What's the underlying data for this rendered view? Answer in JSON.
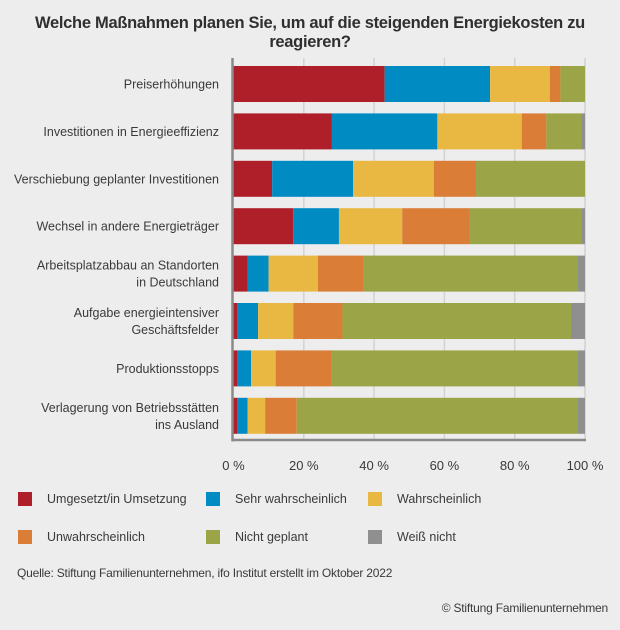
{
  "chart_data": {
    "type": "bar",
    "orientation": "horizontal",
    "stacked": true,
    "title": "Welche Maßnahmen planen Sie, um auf die steigenden Energiekosten zu reagieren?",
    "xlabel": "",
    "ylabel": "",
    "xlim": [
      0,
      100
    ],
    "x_ticks": [
      0,
      20,
      40,
      60,
      80,
      100
    ],
    "x_tick_labels": [
      "0 %",
      "20 %",
      "40 %",
      "60 %",
      "80 %",
      "100 %"
    ],
    "grid": true,
    "legend_position": "bottom",
    "categories": [
      [
        "Preiserhöhungen"
      ],
      [
        "Investitionen in Energieeffizienz"
      ],
      [
        "Verschiebung geplanter Investitionen"
      ],
      [
        "Wechsel in andere Energieträger"
      ],
      [
        "Arbeitsplatzabbau an Standorten",
        "in Deutschland"
      ],
      [
        "Aufgabe energieintensiver",
        "Geschäftsfelder"
      ],
      [
        "Produktionsstopps"
      ],
      [
        "Verlagerung von Betriebsstätten",
        "ins Ausland"
      ]
    ],
    "series": [
      {
        "name": "Umgesetzt/in Umsetzung",
        "color": "#ae1f2a",
        "values": [
          43,
          28,
          11,
          17,
          4,
          1,
          1,
          1
        ]
      },
      {
        "name": "Sehr wahrscheinlich",
        "color": "#008bc3",
        "values": [
          30,
          30,
          23,
          13,
          6,
          6,
          4,
          3
        ]
      },
      {
        "name": "Wahrscheinlich",
        "color": "#e9b843",
        "values": [
          17,
          24,
          23,
          18,
          14,
          10,
          7,
          5
        ]
      },
      {
        "name": "Unwahrscheinlich",
        "color": "#da7e37",
        "values": [
          3,
          7,
          12,
          19,
          13,
          14,
          16,
          9
        ]
      },
      {
        "name": "Nicht geplant",
        "color": "#9ba446",
        "values": [
          7,
          10,
          31,
          32,
          61,
          65,
          70,
          80
        ]
      },
      {
        "name": "Weiß nicht",
        "color": "#8f8f8f",
        "values": [
          0,
          1,
          0,
          1,
          2,
          4,
          2,
          2
        ]
      }
    ]
  },
  "source": "Quelle: Stiftung Familienunternehmen, ifo Institut erstellt im Oktober 2022",
  "copyright": "© Stiftung Familienunternehmen"
}
